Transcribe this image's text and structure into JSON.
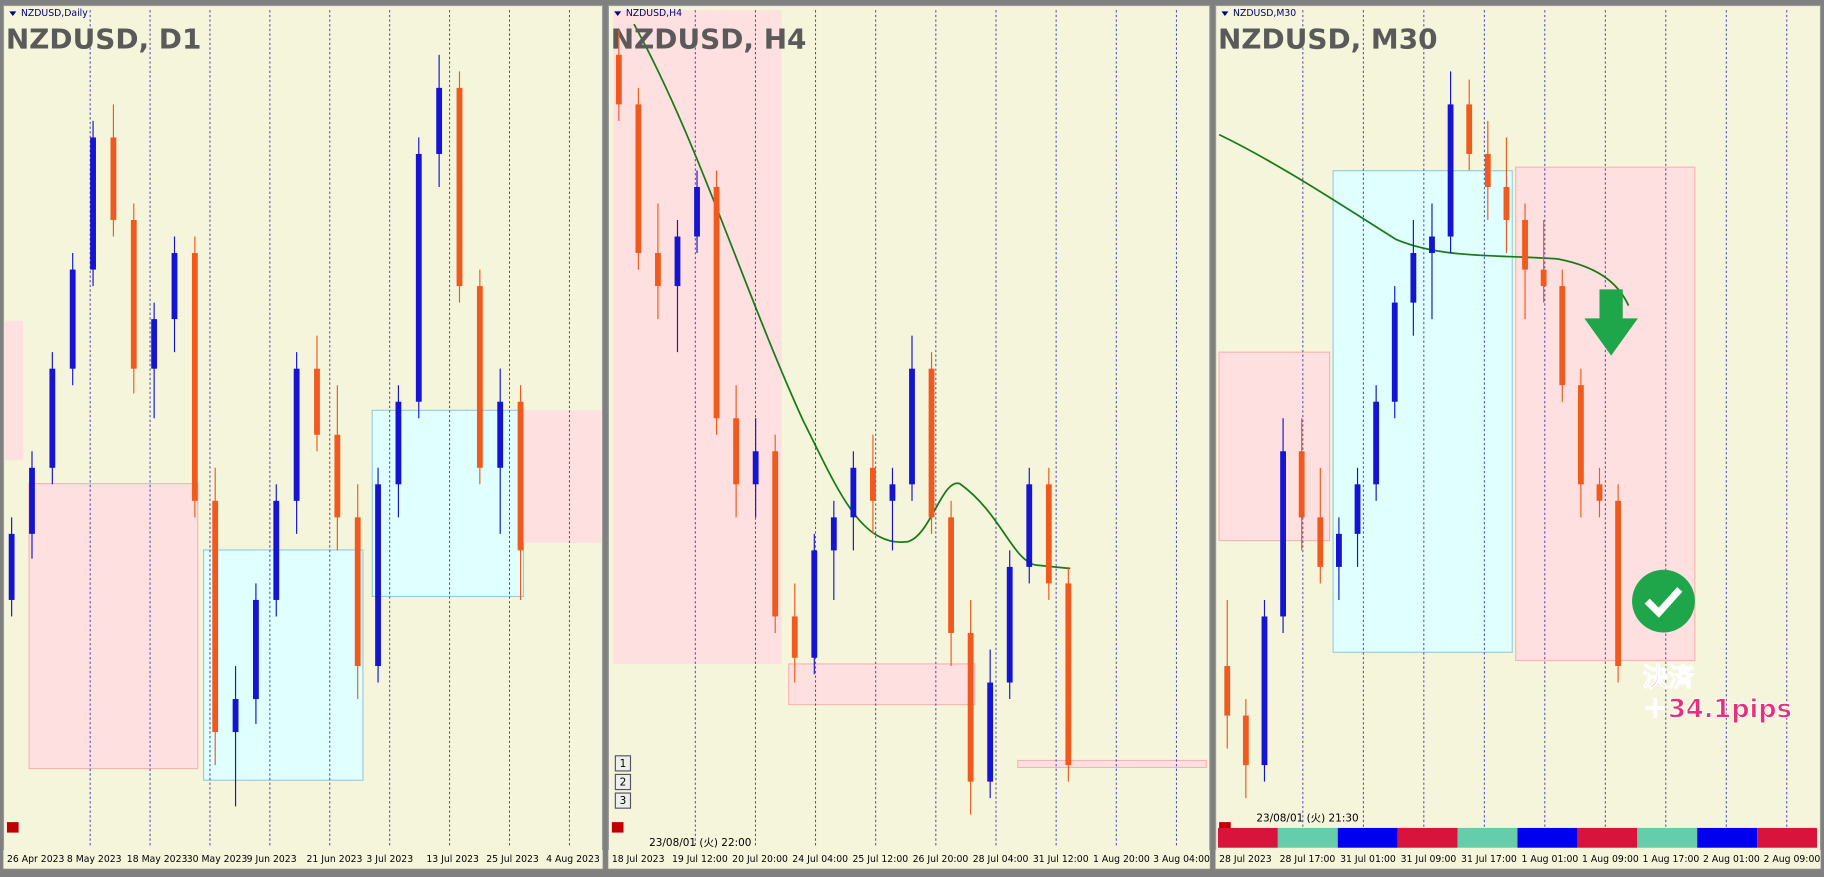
{
  "panels": [
    {
      "window_title": "NZDUSD,Daily",
      "label": "NZDUSD, D1",
      "candles": [
        [
          30,
          40,
          28,
          38
        ],
        [
          38,
          48,
          35,
          46
        ],
        [
          46,
          60,
          44,
          58
        ],
        [
          58,
          72,
          56,
          70
        ],
        [
          70,
          88,
          68,
          86
        ],
        [
          86,
          90,
          74,
          76
        ],
        [
          76,
          78,
          55,
          58
        ],
        [
          58,
          66,
          52,
          64
        ],
        [
          64,
          74,
          60,
          72
        ],
        [
          72,
          74,
          40,
          42
        ],
        [
          42,
          46,
          10,
          14
        ],
        [
          14,
          22,
          5,
          18
        ],
        [
          18,
          32,
          15,
          30
        ],
        [
          30,
          44,
          28,
          42
        ],
        [
          42,
          60,
          38,
          58
        ],
        [
          58,
          62,
          48,
          50
        ],
        [
          50,
          56,
          36,
          40
        ],
        [
          40,
          44,
          18,
          22
        ],
        [
          22,
          46,
          20,
          44
        ],
        [
          44,
          56,
          40,
          54
        ],
        [
          54,
          86,
          52,
          84
        ],
        [
          84,
          96,
          80,
          92
        ],
        [
          92,
          94,
          66,
          68
        ],
        [
          68,
          70,
          44,
          46
        ],
        [
          46,
          58,
          38,
          54
        ],
        [
          54,
          56,
          30,
          36
        ]
      ],
      "time_labels": [
        "26 Apr 2023",
        "8 May 2023",
        "18 May 2023",
        "30 May 2023",
        "9 Jun 2023",
        "21 Jun 2023",
        "3 Jul 2023",
        "13 Jul 2023",
        "25 Jul 2023",
        "4 Aug 2023"
      ]
    },
    {
      "window_title": "NZDUSD,H4",
      "label": "NZDUSD, H4",
      "candles": [
        [
          96,
          99,
          88,
          90
        ],
        [
          90,
          92,
          70,
          72
        ],
        [
          72,
          78,
          64,
          68
        ],
        [
          68,
          76,
          60,
          74
        ],
        [
          74,
          82,
          72,
          80
        ],
        [
          80,
          82,
          50,
          52
        ],
        [
          52,
          56,
          40,
          44
        ],
        [
          44,
          52,
          40,
          48
        ],
        [
          48,
          50,
          26,
          28
        ],
        [
          28,
          32,
          20,
          23
        ],
        [
          23,
          38,
          21,
          36
        ],
        [
          36,
          42,
          30,
          40
        ],
        [
          40,
          48,
          36,
          46
        ],
        [
          46,
          50,
          38,
          42
        ],
        [
          42,
          46,
          36,
          44
        ],
        [
          44,
          62,
          42,
          58
        ],
        [
          58,
          60,
          38,
          40
        ],
        [
          40,
          42,
          22,
          26
        ],
        [
          26,
          30,
          4,
          8
        ],
        [
          8,
          24,
          6,
          20
        ],
        [
          20,
          36,
          18,
          34
        ],
        [
          34,
          46,
          32,
          44
        ],
        [
          44,
          46,
          30,
          32
        ],
        [
          32,
          34,
          8,
          10
        ]
      ],
      "time_labels": [
        "18 Jul 2023",
        "19 Jul 12:00",
        "20 Jul 20:00",
        "24 Jul 04:00",
        "25 Jul 12:00",
        "26 Jul 20:00",
        "28 Jul 04:00",
        "31 Jul 12:00",
        "1 Aug 20:00",
        "3 Aug 04:00"
      ],
      "status": "23/08/01 (火) 22:00",
      "buttons": [
        "1",
        "2",
        "3"
      ]
    },
    {
      "window_title": "NZDUSD,M30",
      "label": "NZDUSD, M30",
      "candles": [
        [
          22,
          30,
          12,
          16
        ],
        [
          16,
          18,
          6,
          10
        ],
        [
          10,
          30,
          8,
          28
        ],
        [
          28,
          52,
          26,
          48
        ],
        [
          48,
          52,
          36,
          40
        ],
        [
          40,
          46,
          32,
          34
        ],
        [
          34,
          40,
          30,
          38
        ],
        [
          38,
          46,
          34,
          44
        ],
        [
          44,
          56,
          42,
          54
        ],
        [
          54,
          68,
          52,
          66
        ],
        [
          66,
          76,
          62,
          72
        ],
        [
          72,
          78,
          64,
          74
        ],
        [
          74,
          94,
          72,
          90
        ],
        [
          90,
          93,
          82,
          84
        ],
        [
          84,
          88,
          76,
          80
        ],
        [
          80,
          86,
          72,
          76
        ],
        [
          76,
          78,
          64,
          70
        ],
        [
          70,
          76,
          66,
          68
        ],
        [
          68,
          70,
          54,
          56
        ],
        [
          56,
          58,
          40,
          44
        ],
        [
          44,
          46,
          40,
          42
        ],
        [
          42,
          44,
          20,
          22
        ]
      ],
      "time_labels": [
        "28 Jul 2023",
        "28 Jul 17:00",
        "31 Jul 01:00",
        "31 Jul 09:00",
        "31 Jul 17:00",
        "1 Aug 01:00",
        "1 Aug 09:00",
        "1 Aug 17:00",
        "2 Aug 01:00",
        "2 Aug 09:00"
      ],
      "status": "23/08/01 (火) 21:30"
    }
  ],
  "annotation": {
    "settle": "決済",
    "pips": "＋34.1pips"
  }
}
